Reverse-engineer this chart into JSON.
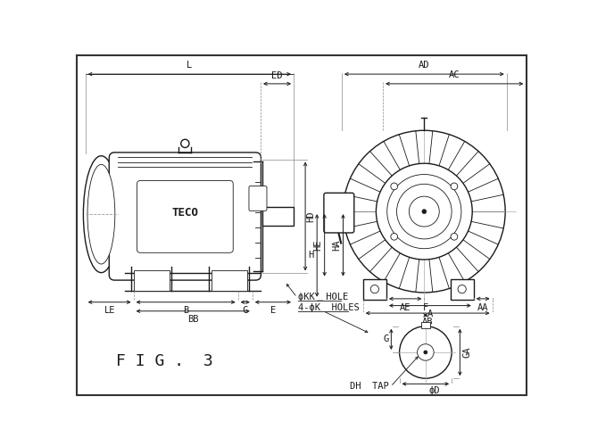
{
  "bg_color": "#ffffff",
  "line_color": "#1a1a1a",
  "fig_title": "F I G .  3",
  "dim_labels": {
    "L": "L",
    "ED": "ED",
    "LE": "LE",
    "B": "B",
    "BB": "BB",
    "C": "C",
    "E": "E",
    "HD": "HD",
    "H": "H",
    "HE": "HE",
    "HA": "HA",
    "AD": "AD",
    "AC": "AC",
    "AE": "AE",
    "AA": "AA",
    "A": "A",
    "AB": "AB",
    "F": "F",
    "G": "G",
    "GA": "GA",
    "D": "ϕD",
    "DH_TAP": "DH  TAP",
    "KK_HOLE": "ϕKK  HOLE",
    "K_HOLES": "4-ϕK  HOLES",
    "TECO": "TECO"
  },
  "font_size_dim": 7.5,
  "font_size_title": 13
}
